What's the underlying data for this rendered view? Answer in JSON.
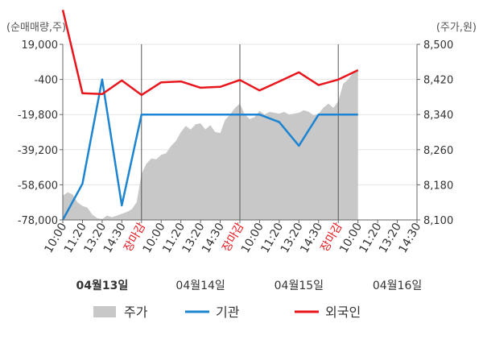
{
  "chart_data": {
    "type": "line",
    "left_axis_unit": "(순매매량,주)",
    "right_axis_unit": "(주가,원)",
    "left_ticks": [
      "19,000",
      "-400",
      "-19,800",
      "-39,200",
      "-58,600",
      "-78,000"
    ],
    "left_tick_values": [
      19000,
      -400,
      -19800,
      -39200,
      -58600,
      -78000
    ],
    "right_ticks": [
      "8,500",
      "8,420",
      "8,340",
      "8,260",
      "8,180",
      "8,100"
    ],
    "right_tick_values": [
      8500,
      8420,
      8340,
      8260,
      8180,
      8100
    ],
    "left_range": [
      -78000,
      19000
    ],
    "right_range": [
      8100,
      8500
    ],
    "x_labels": [
      "10:00",
      "11:20",
      "13:20",
      "14:30",
      "장마감",
      "10:00",
      "11:20",
      "13:20",
      "14:30",
      "장마감",
      "10:00",
      "11:20",
      "13:20",
      "14:30",
      "장마감",
      "10:00",
      "11:20",
      "13:20",
      "14:30"
    ],
    "x_label_close": [
      false,
      false,
      false,
      false,
      true,
      false,
      false,
      false,
      false,
      true,
      false,
      false,
      false,
      false,
      true,
      false,
      false,
      false,
      false
    ],
    "day_labels": [
      "04월13일",
      "04월14일",
      "04월15일",
      "04월16일"
    ],
    "day_label_bold": [
      true,
      false,
      false,
      false
    ],
    "dividers": [
      4,
      9,
      14
    ],
    "legend": [
      "주가",
      "기관",
      "외국인"
    ],
    "colors": {
      "price": "#c8c8c8",
      "institution": "#1c84d0",
      "foreign": "#e8161c",
      "grid": "#e4e4e4",
      "axis": "#666666",
      "close_label": "#e8161c"
    },
    "series": [
      {
        "name": "기관",
        "axis": "left",
        "x": [
          0,
          1,
          2,
          3,
          4,
          5,
          6,
          7,
          8,
          9,
          10,
          11,
          12,
          13,
          14,
          15
        ],
        "values": [
          -78000,
          -58000,
          -400,
          -70000,
          -19800,
          -19800,
          -19800,
          -19800,
          -19800,
          -19800,
          -19800,
          -24000,
          -37000,
          -19800,
          -19800,
          -19800
        ]
      },
      {
        "name": "외국인",
        "axis": "left",
        "x": [
          0,
          1,
          2,
          3,
          4,
          5,
          6,
          7,
          8,
          9,
          10,
          11,
          12,
          13,
          14,
          15
        ],
        "values": [
          38000,
          -8000,
          -8500,
          -1000,
          -9000,
          -2000,
          -1500,
          -5000,
          -4500,
          -700,
          -6500,
          -1500,
          3500,
          -3500,
          -500,
          4700
        ]
      },
      {
        "name": "주가",
        "axis": "right",
        "x": [
          0,
          0.25,
          0.5,
          0.75,
          1,
          1.25,
          1.5,
          1.75,
          2,
          2.25,
          2.5,
          2.75,
          3,
          3.25,
          3.5,
          3.75,
          4,
          4.25,
          4.5,
          4.75,
          5,
          5.25,
          5.5,
          5.75,
          6,
          6.25,
          6.5,
          6.75,
          7,
          7.25,
          7.5,
          7.75,
          8,
          8.25,
          8.5,
          8.75,
          9,
          9.25,
          9.5,
          9.75,
          10,
          10.25,
          10.5,
          10.75,
          11,
          11.25,
          11.5,
          11.75,
          12,
          12.25,
          12.5,
          12.75,
          13,
          13.25,
          13.5,
          13.75,
          14,
          14.25,
          14.5,
          14.75,
          15
        ],
        "values": [
          8155,
          8163,
          8158,
          8140,
          8132,
          8128,
          8112,
          8104,
          8102,
          8110,
          8106,
          8110,
          8114,
          8118,
          8124,
          8140,
          8205,
          8228,
          8240,
          8238,
          8248,
          8252,
          8268,
          8280,
          8300,
          8314,
          8306,
          8318,
          8320,
          8306,
          8316,
          8300,
          8298,
          8328,
          8340,
          8355,
          8365,
          8340,
          8330,
          8334,
          8348,
          8340,
          8346,
          8344,
          8342,
          8346,
          8340,
          8342,
          8344,
          8350,
          8346,
          8338,
          8342,
          8356,
          8365,
          8355,
          8370,
          8410,
          8420,
          8435,
          8445
        ]
      }
    ]
  }
}
